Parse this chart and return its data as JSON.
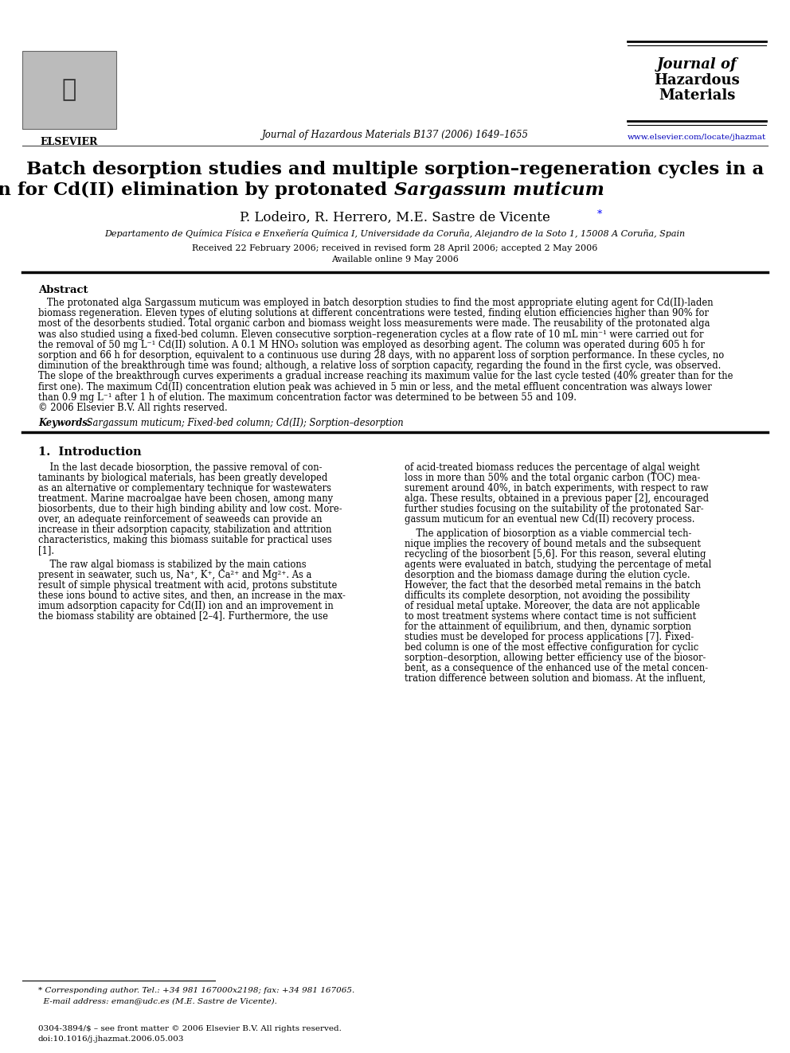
{
  "bg_color": "#ffffff",
  "header_journal_center": "Journal of Hazardous Materials B137 (2006) 1649–1655",
  "header_journal_right_line1": "Journal of",
  "header_journal_right_line2": "Hazardous",
  "header_journal_right_line3": "Materials",
  "header_journal_right_url": "www.elsevier.com/locate/jhazmat",
  "elsevier_text": "ELSEVIER",
  "title_line1": "Batch desorption studies and multiple sorption–regeneration cycles in a",
  "title_line2_normal": "fixed-bed column for Cd(II) elimination by protonated ",
  "title_line2_italic": "Sargassum muticum",
  "authors": "P. Lodeiro, R. Herrero, M.E. Sastre de Vicente",
  "affiliation": "Departamento de Química Física e Enxeñería Química I, Universidade da Coruña, Alejandro de la Soto 1, 15008 A Coruña, Spain",
  "received": "Received 22 February 2006; received in revised form 28 April 2006; accepted 2 May 2006",
  "available": "Available online 9 May 2006",
  "abstract_title": "Abstract",
  "abstract_lines": [
    "   The protonated alga Sargassum muticum was employed in batch desorption studies to find the most appropriate eluting agent for Cd(II)-laden",
    "biomass regeneration. Eleven types of eluting solutions at different concentrations were tested, finding elution efficiencies higher than 90% for",
    "most of the desorbents studied. Total organic carbon and biomass weight loss measurements were made. The reusability of the protonated alga",
    "was also studied using a fixed-bed column. Eleven consecutive sorption–regeneration cycles at a flow rate of 10 mL min⁻¹ were carried out for",
    "the removal of 50 mg L⁻¹ Cd(II) solution. A 0.1 M HNO₃ solution was employed as desorbing agent. The column was operated during 605 h for",
    "sorption and 66 h for desorption, equivalent to a continuous use during 28 days, with no apparent loss of sorption performance. In these cycles, no",
    "diminution of the breakthrough time was found; although, a relative loss of sorption capacity, regarding the found in the first cycle, was observed.",
    "The slope of the breakthrough curves experiments a gradual increase reaching its maximum value for the last cycle tested (40% greater than for the",
    "first one). The maximum Cd(II) concentration elution peak was achieved in 5 min or less, and the metal effluent concentration was always lower",
    "than 0.9 mg L⁻¹ after 1 h of elution. The maximum concentration factor was determined to be between 55 and 109.",
    "© 2006 Elsevier B.V. All rights reserved."
  ],
  "keywords_bold": "Keywords: ",
  "keywords_italic": " Sargassum muticum; Fixed-bed column; Cd(II); Sorption–desorption",
  "section1_title": "1.  Introduction",
  "col1p1_lines": [
    "    In the last decade biosorption, the passive removal of con-",
    "taminants by biological materials, has been greatly developed",
    "as an alternative or complementary technique for wastewaters",
    "treatment. Marine macroalgae have been chosen, among many",
    "biosorbents, due to their high binding ability and low cost. More-",
    "over, an adequate reinforcement of seaweeds can provide an",
    "increase in their adsorption capacity, stabilization and attrition",
    "characteristics, making this biomass suitable for practical uses",
    "[1]."
  ],
  "col1p2_lines": [
    "    The raw algal biomass is stabilized by the main cations",
    "present in seawater, such us, Na⁺, K⁺, Ca²⁺ and Mg²⁺. As a",
    "result of simple physical treatment with acid, protons substitute",
    "these ions bound to active sites, and then, an increase in the max-",
    "imum adsorption capacity for Cd(II) ion and an improvement in",
    "the biomass stability are obtained [2–4]. Furthermore, the use"
  ],
  "col2p1_lines": [
    "of acid-treated biomass reduces the percentage of algal weight",
    "loss in more than 50% and the total organic carbon (TOC) mea-",
    "surement around 40%, in batch experiments, with respect to raw",
    "alga. These results, obtained in a previous paper [2], encouraged",
    "further studies focusing on the suitability of the protonated Sar-",
    "gassum muticum for an eventual new Cd(II) recovery process."
  ],
  "col2p2_lines": [
    "    The application of biosorption as a viable commercial tech-",
    "nique implies the recovery of bound metals and the subsequent",
    "recycling of the biosorbent [5,6]. For this reason, several eluting",
    "agents were evaluated in batch, studying the percentage of metal",
    "desorption and the biomass damage during the elution cycle.",
    "However, the fact that the desorbed metal remains in the batch",
    "difficults its complete desorption, not avoiding the possibility",
    "of residual metal uptake. Moreover, the data are not applicable",
    "to most treatment systems where contact time is not sufficient",
    "for the attainment of equilibrium, and then, dynamic sorption",
    "studies must be developed for process applications [7]. Fixed-",
    "bed column is one of the most effective configuration for cyclic",
    "sorption–desorption, allowing better efficiency use of the biosor-",
    "bent, as a consequence of the enhanced use of the metal concen-",
    "tration difference between solution and biomass. At the influent,"
  ],
  "footnote_lines": [
    "* Corresponding author. Tel.: +34 981 167000x2198; fax: +34 981 167065.",
    "  E-mail address: eman@udc.es (M.E. Sastre de Vicente)."
  ],
  "footer_lines": [
    "0304-3894/$ – see front matter © 2006 Elsevier B.V. All rights reserved.",
    "doi:10.1016/j.jhazmat.2006.05.003"
  ]
}
